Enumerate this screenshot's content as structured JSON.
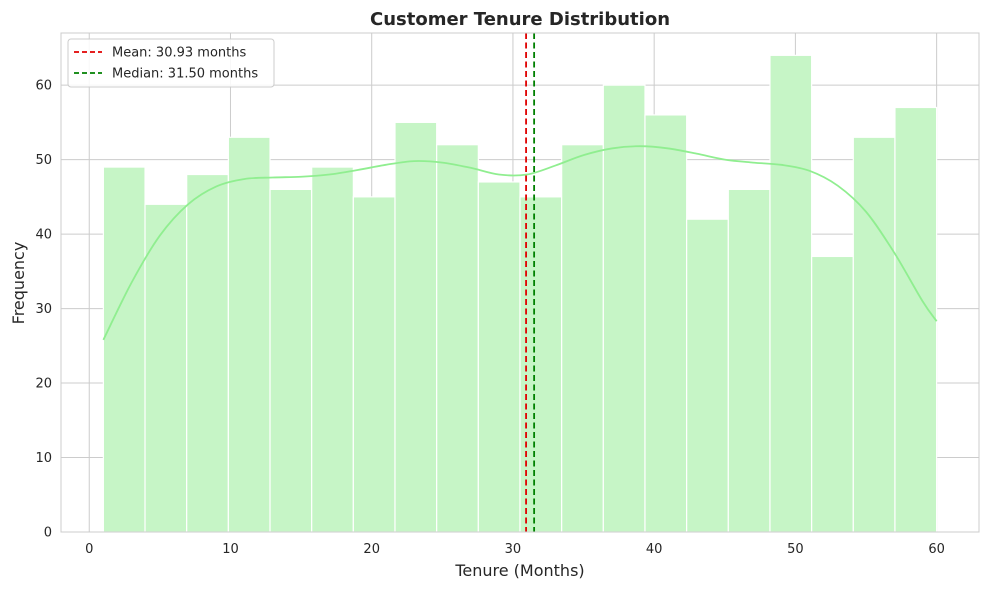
{
  "chart_data": {
    "type": "bar",
    "title": "Customer Tenure Distribution",
    "xlabel": "Tenure (Months)",
    "ylabel": "Frequency",
    "xlim": [
      -2,
      63
    ],
    "ylim": [
      0,
      67
    ],
    "xticks": [
      0,
      10,
      20,
      30,
      40,
      50,
      60
    ],
    "yticks": [
      0,
      10,
      20,
      30,
      40,
      50,
      60
    ],
    "grid": true,
    "legend_position": "top-left",
    "bin_edges": [
      1,
      3.95,
      6.9,
      9.85,
      12.8,
      15.75,
      18.7,
      21.65,
      24.6,
      27.55,
      30.5,
      33.45,
      36.4,
      39.35,
      42.3,
      45.25,
      48.2,
      51.15,
      54.1,
      57.05,
      60
    ],
    "values": [
      49,
      44,
      48,
      53,
      46,
      49,
      45,
      55,
      52,
      47,
      45,
      52,
      60,
      56,
      42,
      46,
      64,
      37,
      53,
      57
    ],
    "bar_color": "#c6f5c6",
    "kde": {
      "color": "#90ee90",
      "x": [
        1,
        3,
        5,
        7,
        9,
        11,
        13,
        15,
        17,
        19,
        21,
        23,
        25,
        27,
        29,
        31,
        33,
        35,
        37,
        39,
        41,
        43,
        45,
        47,
        49,
        51,
        53,
        55,
        57,
        59,
        60
      ],
      "y": [
        25.8,
        33.5,
        39.8,
        44.0,
        46.4,
        47.4,
        47.6,
        47.7,
        48.0,
        48.6,
        49.3,
        49.8,
        49.6,
        48.9,
        48.0,
        48.0,
        49.2,
        50.6,
        51.5,
        51.8,
        51.5,
        50.8,
        50.0,
        49.6,
        49.3,
        48.5,
        46.5,
        43.0,
        37.5,
        31.0,
        28.3
      ]
    },
    "reference_lines": [
      {
        "label": "Mean: 30.93 months",
        "x": 30.93,
        "color": "#e00000",
        "style": "dashed"
      },
      {
        "label": "Median: 31.50 months",
        "x": 31.5,
        "color": "#008000",
        "style": "dashed"
      }
    ]
  }
}
